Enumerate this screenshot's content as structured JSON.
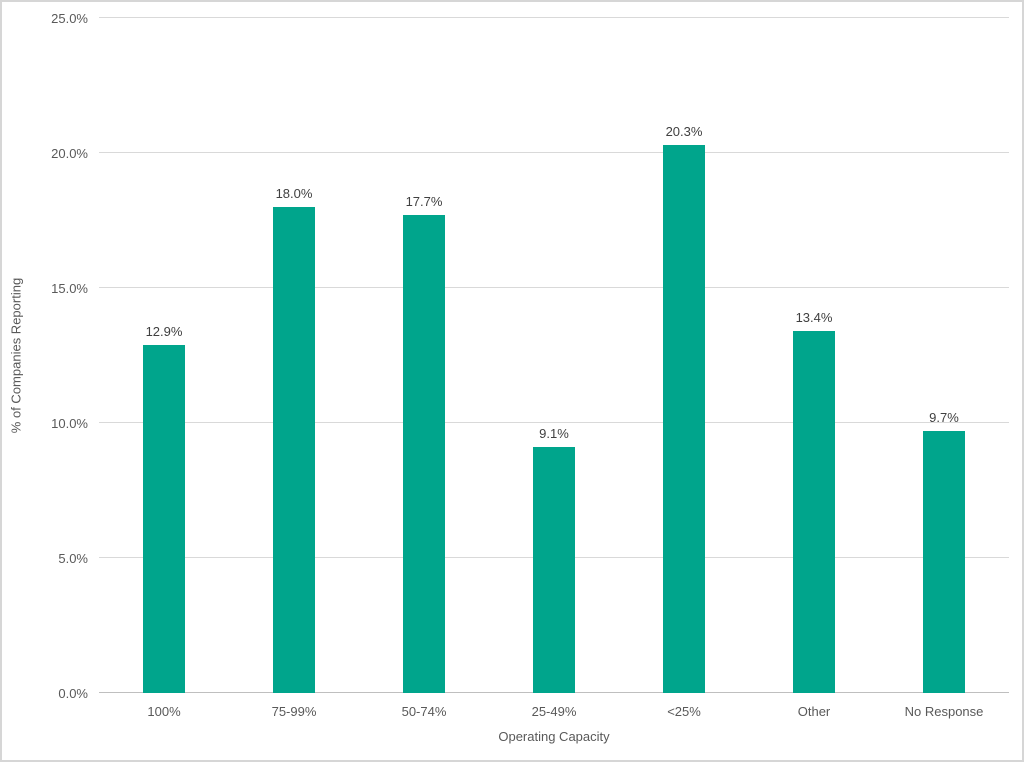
{
  "chart_data": {
    "type": "bar",
    "title": "",
    "xlabel": "Operating Capacity",
    "ylabel": "% of Companies Reporting",
    "categories": [
      "100%",
      "75-99%",
      "50-74%",
      "25-49%",
      "<25%",
      "Other",
      "No Response"
    ],
    "values": [
      12.9,
      18.0,
      17.7,
      9.1,
      20.3,
      13.4,
      9.7
    ],
    "data_labels": [
      "12.9%",
      "18.0%",
      "17.7%",
      "9.1%",
      "20.3%",
      "13.4%",
      "9.7%"
    ],
    "ylim": [
      0,
      25
    ],
    "ytick_step": 5,
    "ytick_labels": [
      "0.0%",
      "5.0%",
      "10.0%",
      "15.0%",
      "20.0%",
      "25.0%"
    ],
    "grid": true,
    "legend": "none",
    "colors": {
      "bar": "#00a58c",
      "gridline": "#d9d9d9",
      "axis_line": "#bfbfbf",
      "tick_text": "#595959",
      "data_label_text": "#404040",
      "frame_border": "#d6d6d6",
      "background": "#ffffff"
    }
  }
}
